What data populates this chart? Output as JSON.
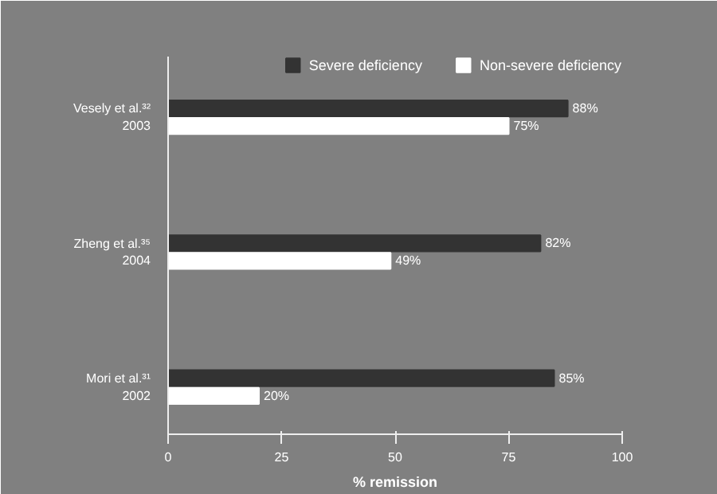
{
  "chart_data": {
    "type": "bar",
    "orientation": "horizontal",
    "xlabel": "% remission",
    "categories": [
      "Vesely et al.³²\n2003",
      "Zheng et al.³⁵\n2004",
      "Mori et al.³¹\n2002"
    ],
    "series": [
      {
        "name": "Severe deficiency",
        "color": "#333333",
        "values": [
          88,
          82,
          85
        ],
        "value_labels": [
          "88%",
          "82%",
          "85%"
        ]
      },
      {
        "name": "Non-severe deficiency",
        "color": "#ffffff",
        "values": [
          75,
          49,
          20
        ],
        "value_labels": [
          "75%",
          "49%",
          "20%"
        ]
      }
    ],
    "xlim": [
      0,
      100
    ],
    "xticks": [
      0,
      25,
      50,
      75,
      100
    ],
    "grid": false,
    "legend": "top right"
  }
}
